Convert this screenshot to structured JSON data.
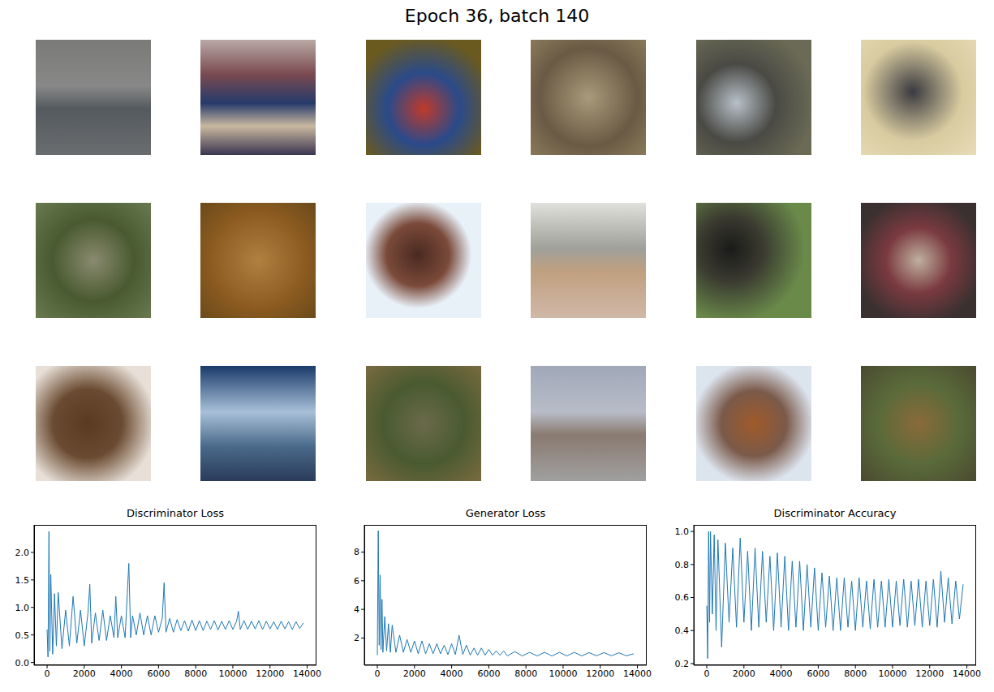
{
  "title": "Epoch 36, batch 140",
  "chart_data": [
    {
      "type": "line",
      "title": "Discriminator Loss",
      "color": "#1f77b4",
      "x": [
        0,
        50,
        100,
        150,
        200,
        300,
        400,
        500,
        600,
        800,
        1000,
        1200,
        1400,
        1600,
        1800,
        2000,
        2200,
        2300,
        2400,
        2600,
        2800,
        3000,
        3200,
        3400,
        3600,
        3700,
        3800,
        4000,
        4200,
        4400,
        4500,
        4600,
        4800,
        5000,
        5200,
        5400,
        5600,
        5800,
        6000,
        6200,
        6300,
        6400,
        6600,
        6800,
        7000,
        7200,
        7400,
        7600,
        7800,
        8000,
        8200,
        8400,
        8600,
        8800,
        9000,
        9200,
        9400,
        9600,
        9800,
        10000,
        10200,
        10300,
        10400,
        10600,
        10800,
        11000,
        11200,
        11400,
        11600,
        11800,
        12000,
        12200,
        12400,
        12600,
        12800,
        13000,
        13200,
        13400,
        13600,
        13800
      ],
      "values": [
        0.6,
        0.1,
        2.38,
        0.2,
        1.6,
        0.15,
        1.25,
        0.3,
        1.27,
        0.25,
        0.95,
        0.3,
        1.2,
        0.35,
        0.95,
        0.3,
        0.9,
        1.42,
        0.35,
        0.9,
        0.4,
        0.95,
        0.4,
        0.85,
        0.45,
        1.2,
        0.45,
        0.85,
        0.45,
        1.8,
        0.45,
        0.85,
        0.5,
        0.9,
        0.5,
        0.85,
        0.5,
        0.85,
        0.55,
        0.8,
        1.45,
        0.55,
        0.8,
        0.55,
        0.78,
        0.58,
        0.76,
        0.57,
        0.77,
        0.58,
        0.76,
        0.58,
        0.75,
        0.6,
        0.76,
        0.59,
        0.75,
        0.6,
        0.76,
        0.6,
        0.75,
        0.93,
        0.6,
        0.76,
        0.6,
        0.75,
        0.61,
        0.76,
        0.6,
        0.75,
        0.61,
        0.74,
        0.6,
        0.75,
        0.61,
        0.74,
        0.6,
        0.74,
        0.62,
        0.72
      ],
      "xlim": [
        -700,
        14500
      ],
      "xticks": [
        0,
        2000,
        4000,
        6000,
        8000,
        10000,
        12000,
        14000
      ],
      "ylim": [
        -0.05,
        2.5
      ],
      "yticks": [
        {
          "value": 0,
          "label": "0.0"
        },
        0.5,
        {
          "value": 1,
          "label": "1.0"
        },
        1.5,
        {
          "value": 2,
          "label": "2.0"
        }
      ]
    },
    {
      "type": "line",
      "title": "Generator Loss",
      "color": "#1f77b4",
      "x": [
        0,
        50,
        100,
        150,
        200,
        250,
        300,
        400,
        500,
        600,
        700,
        800,
        1000,
        1200,
        1400,
        1600,
        1800,
        2000,
        2200,
        2400,
        2600,
        2800,
        3000,
        3200,
        3400,
        3600,
        3800,
        4000,
        4200,
        4400,
        4600,
        4800,
        5000,
        5200,
        5400,
        5600,
        5800,
        6000,
        6200,
        6400,
        6600,
        6800,
        7000,
        7400,
        7800,
        8200,
        8600,
        9000,
        9400,
        9800,
        10200,
        10600,
        11000,
        11400,
        11800,
        12200,
        12600,
        13000,
        13400,
        13800
      ],
      "values": [
        0.8,
        9.5,
        1.5,
        6.4,
        1.2,
        4.7,
        1.0,
        3.5,
        1.1,
        3.0,
        1.0,
        2.9,
        1.0,
        2.2,
        1.0,
        1.9,
        1.0,
        1.8,
        0.9,
        1.8,
        0.9,
        1.6,
        0.9,
        1.6,
        0.9,
        1.5,
        0.85,
        1.6,
        0.85,
        2.2,
        0.85,
        1.5,
        0.8,
        1.3,
        0.8,
        1.3,
        0.8,
        1.2,
        0.8,
        1.1,
        0.8,
        1.1,
        0.75,
        1.05,
        0.75,
        1.0,
        0.75,
        1.0,
        0.75,
        1.0,
        0.75,
        1.0,
        0.75,
        0.98,
        0.76,
        0.98,
        0.76,
        0.97,
        0.76,
        0.9
      ],
      "xlim": [
        -700,
        14500
      ],
      "xticks": [
        0,
        2000,
        4000,
        6000,
        8000,
        10000,
        12000,
        14000
      ],
      "ylim": [
        0.1,
        9.9
      ],
      "yticks": [
        2,
        4,
        6,
        8
      ]
    },
    {
      "type": "line",
      "title": "Discriminator Accuracy",
      "color": "#1f77b4",
      "x": [
        0,
        50,
        100,
        150,
        200,
        300,
        400,
        500,
        600,
        800,
        1000,
        1200,
        1400,
        1600,
        1800,
        2000,
        2200,
        2400,
        2600,
        2800,
        3000,
        3200,
        3400,
        3600,
        3800,
        4000,
        4200,
        4400,
        4600,
        4800,
        5000,
        5200,
        5400,
        5600,
        5800,
        6000,
        6200,
        6400,
        6600,
        6800,
        7000,
        7200,
        7400,
        7600,
        7800,
        8000,
        8200,
        8400,
        8600,
        8800,
        9000,
        9200,
        9400,
        9600,
        9800,
        10000,
        10200,
        10400,
        10600,
        10800,
        11000,
        11200,
        11400,
        11600,
        11800,
        12000,
        12200,
        12400,
        12600,
        12800,
        13000,
        13200,
        13400,
        13600,
        13800
      ],
      "values": [
        0.55,
        0.23,
        1.0,
        0.45,
        1.0,
        0.5,
        0.98,
        0.4,
        0.95,
        0.3,
        0.93,
        0.45,
        0.9,
        0.42,
        0.96,
        0.45,
        0.88,
        0.4,
        0.9,
        0.42,
        0.88,
        0.45,
        0.85,
        0.4,
        0.87,
        0.42,
        0.85,
        0.4,
        0.82,
        0.42,
        0.82,
        0.4,
        0.8,
        0.42,
        0.78,
        0.4,
        0.75,
        0.42,
        0.73,
        0.4,
        0.72,
        0.4,
        0.72,
        0.42,
        0.7,
        0.4,
        0.72,
        0.42,
        0.7,
        0.41,
        0.71,
        0.42,
        0.7,
        0.42,
        0.71,
        0.42,
        0.7,
        0.43,
        0.71,
        0.42,
        0.7,
        0.43,
        0.71,
        0.42,
        0.7,
        0.43,
        0.71,
        0.42,
        0.76,
        0.45,
        0.72,
        0.44,
        0.7,
        0.47,
        0.68
      ],
      "xlim": [
        -700,
        14500
      ],
      "xticks": [
        0,
        2000,
        4000,
        6000,
        8000,
        10000,
        12000,
        14000
      ],
      "ylim": [
        0.19,
        1.04
      ],
      "yticks": [
        0.2,
        0.4,
        0.6,
        {
          "value": 0.8,
          "label": "0.8"
        },
        {
          "value": 1.0,
          "label": "1.0"
        }
      ]
    }
  ]
}
